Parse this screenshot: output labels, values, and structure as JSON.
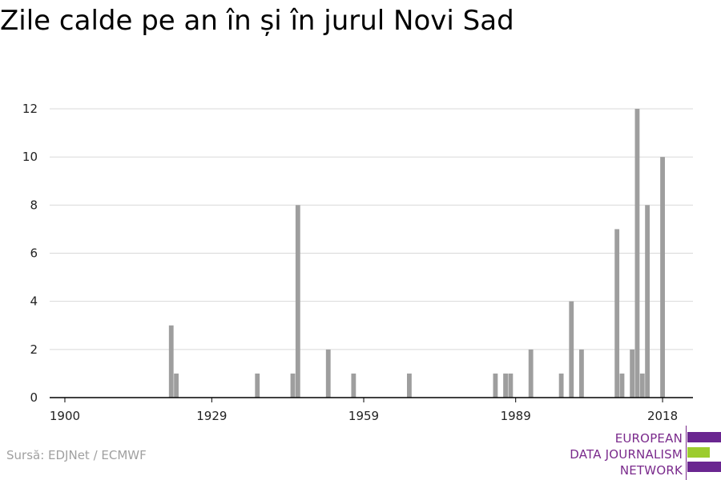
{
  "title": "Zile calde pe an în și în jurul Novi Sad",
  "source": "Sursă: EDJNet / ECMWF",
  "logo": {
    "lines": [
      "EUROPEAN",
      "DATA JOURNALISM",
      "NETWORK"
    ],
    "text_color": "#7a2a8c",
    "purple": "#6a2690",
    "green": "#9ccc2e"
  },
  "colors": {
    "bar": "#9e9e9e",
    "grid": "#d9d9d9",
    "axis": "#000000",
    "tick_text": "#222222"
  },
  "chart_data": {
    "type": "bar",
    "title": "Zile calde pe an în și în jurul Novi Sad",
    "xlabel": "",
    "ylabel": "",
    "x_ticks": [
      1900,
      1929,
      1959,
      1989,
      2018
    ],
    "y_ticks": [
      0,
      2,
      4,
      6,
      8,
      10,
      12
    ],
    "xlim": [
      1897,
      2024
    ],
    "ylim": [
      0,
      12.6
    ],
    "grid": true,
    "x": [
      1921,
      1922,
      1938,
      1945,
      1946,
      1952,
      1957,
      1968,
      1985,
      1987,
      1988,
      1992,
      1998,
      2000,
      2002,
      2009,
      2010,
      2012,
      2013,
      2014,
      2015,
      2016,
      2018
    ],
    "values": [
      3,
      1,
      1,
      1,
      8,
      2,
      1,
      1,
      1,
      1,
      1,
      2,
      1,
      4,
      2,
      7,
      1,
      2,
      12,
      1,
      8,
      0,
      10
    ]
  }
}
